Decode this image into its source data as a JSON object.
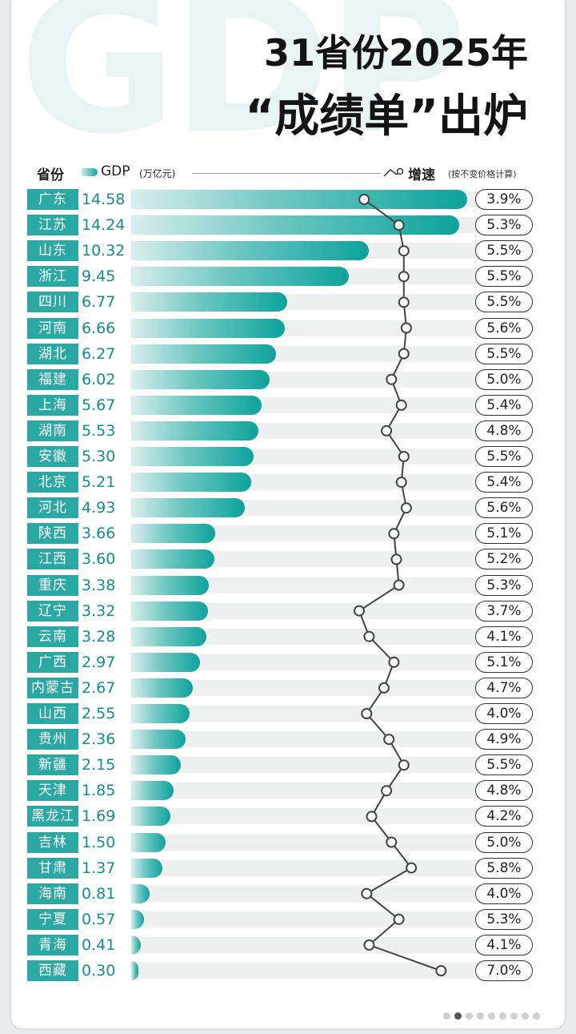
{
  "background_text": "GDP",
  "title": {
    "line1": "31省份2025年",
    "line2": "“成绩单”出炉"
  },
  "header": {
    "province_label": "省份",
    "gdp_label": "GDP",
    "gdp_unit": "(万亿元)",
    "growth_label": "增速",
    "growth_note": "(按不变价格计算)"
  },
  "colors": {
    "bar": "#12a6a0",
    "province_bg": "#2aa8a4",
    "gdp_text": "#118f8a"
  },
  "chart_data": {
    "type": "bar",
    "orientation": "horizontal",
    "categories": [
      "广东",
      "江苏",
      "山东",
      "浙江",
      "四川",
      "河南",
      "湖北",
      "福建",
      "上海",
      "湖南",
      "安徽",
      "北京",
      "河北",
      "陕西",
      "江西",
      "重庆",
      "辽宁",
      "云南",
      "广西",
      "内蒙古",
      "山西",
      "贵州",
      "新疆",
      "天津",
      "黑龙江",
      "吉林",
      "甘肃",
      "海南",
      "宁夏",
      "青海",
      "西藏"
    ],
    "series": [
      {
        "name": "GDP",
        "values": [
          14.58,
          14.24,
          10.32,
          9.45,
          6.77,
          6.66,
          6.27,
          6.02,
          5.67,
          5.53,
          5.3,
          5.21,
          4.93,
          3.66,
          3.6,
          3.38,
          3.32,
          3.28,
          2.97,
          2.67,
          2.55,
          2.36,
          2.15,
          1.85,
          1.69,
          1.5,
          1.37,
          0.81,
          0.57,
          0.41,
          0.3
        ]
      },
      {
        "name": "增速",
        "values": [
          3.9,
          5.3,
          5.5,
          5.5,
          5.5,
          5.6,
          5.5,
          5.0,
          5.4,
          4.8,
          5.5,
          5.4,
          5.6,
          5.1,
          5.2,
          5.3,
          3.7,
          4.1,
          5.1,
          4.7,
          4.0,
          4.9,
          5.5,
          4.8,
          4.2,
          5.0,
          5.8,
          4.0,
          5.3,
          4.1,
          7.0
        ]
      }
    ],
    "gdp_labels": [
      "14.58",
      "14.24",
      "10.32",
      "9.45",
      "6.77",
      "6.66",
      "6.27",
      "6.02",
      "5.67",
      "5.53",
      "5.30",
      "5.21",
      "4.93",
      "3.66",
      "3.60",
      "3.38",
      "3.32",
      "3.28",
      "2.97",
      "2.67",
      "2.55",
      "2.36",
      "2.15",
      "1.85",
      "1.69",
      "1.50",
      "1.37",
      "0.81",
      "0.57",
      "0.41",
      "0.30"
    ],
    "growth_labels": [
      "3.9%",
      "5.3%",
      "5.5%",
      "5.5%",
      "5.5%",
      "5.6%",
      "5.5%",
      "5.0%",
      "5.4%",
      "4.8%",
      "5.5%",
      "5.4%",
      "5.6%",
      "5.1%",
      "5.2%",
      "5.3%",
      "3.7%",
      "4.1%",
      "5.1%",
      "4.7%",
      "4.0%",
      "4.9%",
      "5.5%",
      "4.8%",
      "4.2%",
      "5.0%",
      "5.8%",
      "4.0%",
      "5.3%",
      "4.1%",
      "7.0%"
    ],
    "xlim": [
      0,
      14.58
    ],
    "grid": false
  }
}
